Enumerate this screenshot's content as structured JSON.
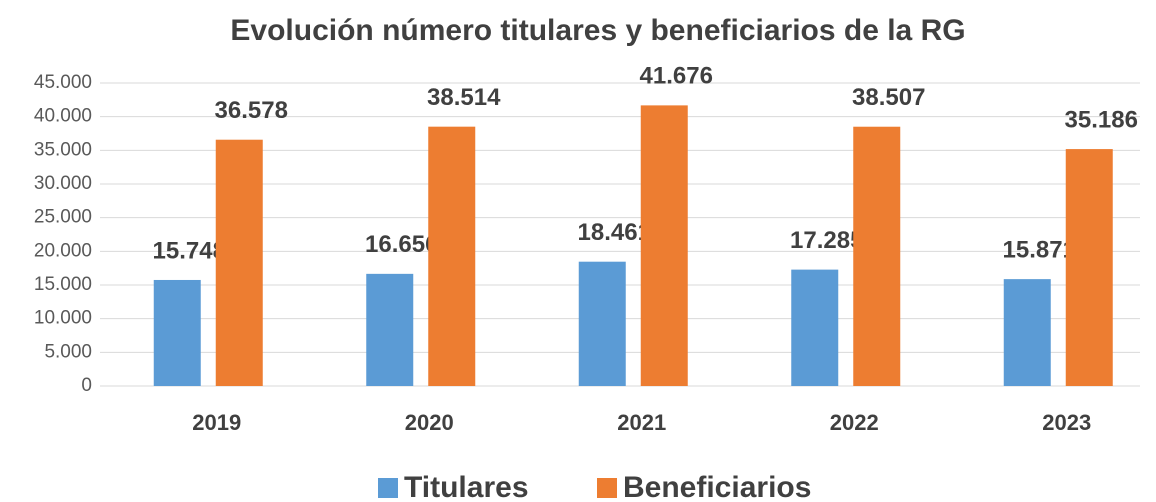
{
  "chart_data": {
    "type": "bar",
    "title": "Evolución número titulares y beneficiarios de la RG",
    "categories": [
      "2019",
      "2020",
      "2021",
      "2022",
      "2023"
    ],
    "series": [
      {
        "name": "Titulares",
        "color": "#5b9bd5",
        "values": [
          15748,
          16656,
          18461,
          17285,
          15871
        ],
        "value_labels": [
          "15.748",
          "16.656",
          "18.461",
          "17.285",
          "15.871"
        ]
      },
      {
        "name": "Beneficiarios",
        "color": "#ed7d31",
        "values": [
          36578,
          38514,
          41676,
          38507,
          35186
        ],
        "value_labels": [
          "36.578",
          "38.514",
          "41.676",
          "38.507",
          "35.186"
        ]
      }
    ],
    "ylim": [
      0,
      45000
    ],
    "yticks": [
      0,
      {
        "value": 5000,
        "label": "5.000"
      },
      {
        "value": 10000,
        "label": "10.000"
      },
      {
        "value": 15000,
        "label": "15.000"
      },
      {
        "value": 20000,
        "label": "20.000"
      },
      {
        "value": 25000,
        "label": "25.000"
      },
      {
        "value": 30000,
        "label": "30.000"
      },
      {
        "value": 35000,
        "label": "35.000"
      },
      {
        "value": 40000,
        "label": "40.000"
      },
      {
        "value": 45000,
        "label": "45.000"
      }
    ],
    "grid": true,
    "legend": "bottom"
  }
}
